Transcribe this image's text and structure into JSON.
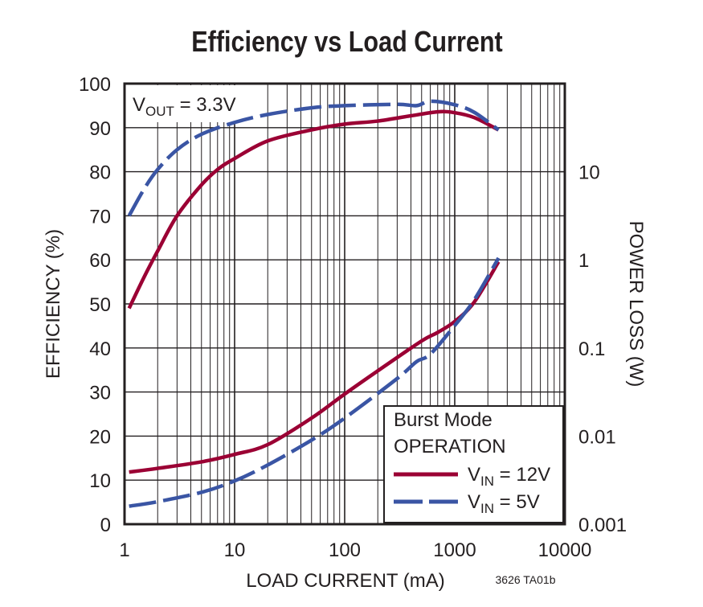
{
  "chart_data": {
    "type": "line",
    "title": "Efficiency vs Load Current",
    "xlabel": "LOAD CURRENT (mA)",
    "ylabel": "EFFICIENCY (%)",
    "y2label": "POWER LOSS (W)",
    "xscale": "log",
    "xlim": [
      1,
      10000
    ],
    "ylim": [
      0,
      100
    ],
    "y2scale": "log",
    "y2lim": [
      0.001,
      100
    ],
    "xticks": [
      "1",
      "10",
      "100",
      "1000",
      "10000"
    ],
    "yticks": [
      "0",
      "10",
      "20",
      "30",
      "40",
      "50",
      "60",
      "70",
      "80",
      "90",
      "100"
    ],
    "y2ticks": [
      "0.001",
      "0.01",
      "0.1",
      "1",
      "10"
    ],
    "grid": true,
    "annotation": {
      "base": "V",
      "sub": "OUT",
      "rest": " = 3.3V"
    },
    "legend": {
      "placement": "bottom-right",
      "title_line1": "Burst Mode",
      "title_line2": "OPERATION",
      "entries": [
        {
          "base": "V",
          "sub": "IN",
          "rest": " = 12V",
          "color": "#9b0034",
          "dash": "solid"
        },
        {
          "base": "V",
          "sub": "IN",
          "rest": " = 5V",
          "color": "#3a55a4",
          "dash": "dashed"
        }
      ]
    },
    "figure_code": "3626 TA01b",
    "series": [
      {
        "legend": "12V",
        "axis": "efficiency",
        "color": "#9b0034",
        "dash": "solid",
        "x": [
          1.1,
          1.5,
          2,
          3,
          5,
          7,
          10,
          20,
          50,
          100,
          200,
          400,
          700,
          1000,
          1500,
          2500
        ],
        "y": [
          49,
          56,
          62,
          70,
          77,
          80.5,
          83,
          87,
          89.5,
          90.8,
          91.5,
          92.7,
          93.6,
          93.4,
          92.3,
          89.5
        ]
      },
      {
        "legend": "5V",
        "axis": "efficiency",
        "color": "#3a55a4",
        "dash": "dashed",
        "x": [
          1.1,
          1.5,
          2,
          3,
          5,
          10,
          20,
          50,
          100,
          300,
          450,
          600,
          1000,
          1500,
          2500
        ],
        "y": [
          70,
          76,
          80.5,
          85,
          88.5,
          91.2,
          93,
          94.5,
          95,
          95.3,
          95,
          96,
          95.2,
          93.5,
          89.5
        ]
      },
      {
        "legend": "12V",
        "axis": "power_loss",
        "color": "#9b0034",
        "dash": "solid",
        "x": [
          1.1,
          2,
          5,
          10,
          20,
          50,
          100,
          200,
          500,
          700,
          1000,
          1500,
          2500
        ],
        "y": [
          0.0039,
          0.0043,
          0.0051,
          0.0062,
          0.008,
          0.016,
          0.03,
          0.055,
          0.12,
          0.15,
          0.2,
          0.33,
          0.95
        ]
      },
      {
        "legend": "5V",
        "axis": "power_loss",
        "color": "#3a55a4",
        "dash": "dashed",
        "x": [
          1.1,
          2,
          5,
          10,
          20,
          50,
          100,
          300,
          450,
          600,
          1000,
          1500,
          2500
        ],
        "y": [
          0.0016,
          0.0018,
          0.0023,
          0.0031,
          0.0047,
          0.009,
          0.016,
          0.045,
          0.07,
          0.085,
          0.18,
          0.35,
          1.05
        ]
      }
    ]
  }
}
